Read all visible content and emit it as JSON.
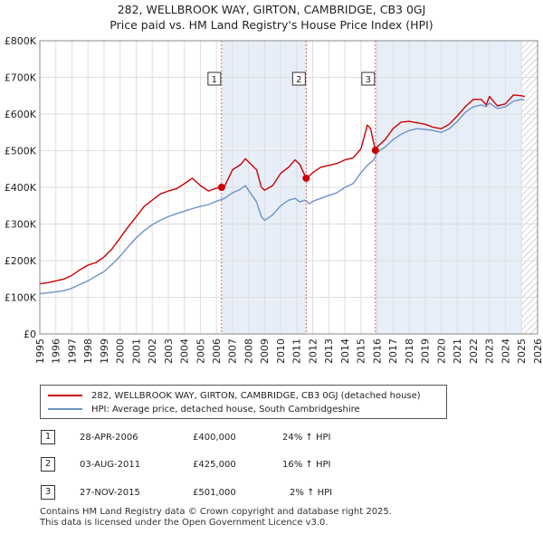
{
  "title": "282, WELLBROOK WAY, GIRTON, CAMBRIDGE, CB3 0GJ",
  "subtitle": "Price paid vs. HM Land Registry's House Price Index (HPI)",
  "colors": {
    "property": "#cc0000",
    "hpi": "#6a93c8",
    "shade": "#e8eef8",
    "marker_line": "#e06060"
  },
  "chart_data": {
    "type": "line",
    "xlim": [
      1995,
      2026
    ],
    "ylim": [
      0,
      800000
    ],
    "y_tick_values": [
      0,
      100000,
      200000,
      300000,
      400000,
      500000,
      600000,
      700000,
      800000
    ],
    "y_tick_labels": [
      "£0",
      "£100K",
      "£200K",
      "£300K",
      "£400K",
      "£500K",
      "£600K",
      "£700K",
      "£800K"
    ],
    "x_tick_labels": [
      "1995",
      "1996",
      "1997",
      "1998",
      "1999",
      "2000",
      "2001",
      "2002",
      "2003",
      "2004",
      "2005",
      "2006",
      "2007",
      "2008",
      "2009",
      "2010",
      "2011",
      "2012",
      "2013",
      "2014",
      "2015",
      "2016",
      "2017",
      "2018",
      "2019",
      "2020",
      "2021",
      "2022",
      "2023",
      "2024",
      "2025",
      "2026"
    ],
    "shaded_ranges": [
      [
        2006.32,
        2011.59
      ],
      [
        2015.9,
        2025.0
      ]
    ],
    "hatched_from": 2025.0,
    "sales": [
      {
        "label": "1",
        "x": 2006.32,
        "price": 400000
      },
      {
        "label": "2",
        "x": 2011.59,
        "price": 425000
      },
      {
        "label": "3",
        "x": 2015.9,
        "price": 501000
      }
    ],
    "series": [
      {
        "name": "282, WELLBROOK WAY, GIRTON, CAMBRIDGE, CB3 0GJ (detached house)",
        "x": [
          1995.0,
          1995.5,
          1996.0,
          1996.5,
          1997.0,
          1997.5,
          1998.0,
          1998.5,
          1999.0,
          1999.5,
          2000.0,
          2000.5,
          2001.0,
          2001.5,
          2002.0,
          2002.5,
          2003.0,
          2003.5,
          2004.0,
          2004.5,
          2005.0,
          2005.5,
          2006.0,
          2006.32,
          2006.5,
          2007.0,
          2007.5,
          2007.8,
          2008.0,
          2008.5,
          2008.8,
          2009.0,
          2009.5,
          2010.0,
          2010.5,
          2010.9,
          2011.2,
          2011.59,
          2011.8,
          2012.0,
          2012.5,
          2013.0,
          2013.5,
          2014.0,
          2014.5,
          2015.0,
          2015.4,
          2015.6,
          2015.8,
          2015.9,
          2016.0,
          2016.5,
          2017.0,
          2017.5,
          2018.0,
          2018.5,
          2019.0,
          2019.5,
          2020.0,
          2020.5,
          2021.0,
          2021.5,
          2022.0,
          2022.5,
          2022.8,
          2023.0,
          2023.5,
          2024.0,
          2024.5,
          2025.0,
          2025.2
        ],
        "values": [
          137000,
          140000,
          145000,
          150000,
          160000,
          175000,
          188000,
          195000,
          210000,
          232000,
          262000,
          292000,
          320000,
          348000,
          365000,
          382000,
          390000,
          396000,
          410000,
          425000,
          405000,
          390000,
          398000,
          400000,
          402000,
          448000,
          462000,
          478000,
          470000,
          448000,
          400000,
          392000,
          405000,
          438000,
          455000,
          475000,
          462000,
          425000,
          432000,
          440000,
          455000,
          460000,
          465000,
          475000,
          480000,
          505000,
          570000,
          560000,
          520000,
          501000,
          510000,
          530000,
          560000,
          578000,
          580000,
          576000,
          572000,
          564000,
          560000,
          572000,
          595000,
          620000,
          640000,
          640000,
          625000,
          648000,
          622000,
          628000,
          652000,
          650000,
          648000
        ]
      },
      {
        "name": "HPI: Average price, detached house, South Cambridgeshire",
        "x": [
          1995.0,
          1995.5,
          1996.0,
          1996.5,
          1997.0,
          1997.5,
          1998.0,
          1998.5,
          1999.0,
          1999.5,
          2000.0,
          2000.5,
          2001.0,
          2001.5,
          2002.0,
          2002.5,
          2003.0,
          2003.5,
          2004.0,
          2004.5,
          2005.0,
          2005.5,
          2006.0,
          2006.5,
          2007.0,
          2007.5,
          2007.8,
          2008.0,
          2008.5,
          2008.8,
          2009.0,
          2009.5,
          2010.0,
          2010.5,
          2010.9,
          2011.2,
          2011.5,
          2011.8,
          2012.0,
          2012.5,
          2013.0,
          2013.5,
          2014.0,
          2014.5,
          2015.0,
          2015.4,
          2015.8,
          2016.0,
          2016.5,
          2017.0,
          2017.5,
          2018.0,
          2018.5,
          2019.0,
          2019.5,
          2020.0,
          2020.5,
          2021.0,
          2021.5,
          2022.0,
          2022.5,
          2022.8,
          2023.0,
          2023.5,
          2024.0,
          2024.5,
          2025.0,
          2025.2
        ],
        "values": [
          110000,
          112000,
          115000,
          118000,
          125000,
          135000,
          145000,
          158000,
          170000,
          190000,
          212000,
          238000,
          262000,
          282000,
          298000,
          310000,
          320000,
          328000,
          335000,
          342000,
          348000,
          353000,
          362000,
          370000,
          385000,
          395000,
          405000,
          392000,
          360000,
          320000,
          310000,
          325000,
          350000,
          365000,
          370000,
          360000,
          365000,
          355000,
          362000,
          370000,
          378000,
          385000,
          400000,
          410000,
          440000,
          460000,
          475000,
          495000,
          510000,
          530000,
          545000,
          555000,
          560000,
          558000,
          555000,
          550000,
          560000,
          580000,
          605000,
          620000,
          625000,
          620000,
          630000,
          615000,
          620000,
          635000,
          640000,
          638000
        ]
      }
    ]
  },
  "legend": [
    {
      "label": "282, WELLBROOK WAY, GIRTON, CAMBRIDGE, CB3 0GJ (detached house)"
    },
    {
      "label": "HPI: Average price, detached house, South Cambridgeshire"
    }
  ],
  "sales_table": [
    {
      "num": "1",
      "date": "28-APR-2006",
      "price": "£400,000",
      "hpi": "24% ↑ HPI"
    },
    {
      "num": "2",
      "date": "03-AUG-2011",
      "price": "£425,000",
      "hpi": "16% ↑ HPI"
    },
    {
      "num": "3",
      "date": "27-NOV-2015",
      "price": "£501,000",
      "hpi": "2% ↑ HPI"
    }
  ],
  "footer": {
    "line1": "Contains HM Land Registry data © Crown copyright and database right 2025.",
    "line2": "This data is licensed under the Open Government Licence v3.0."
  }
}
